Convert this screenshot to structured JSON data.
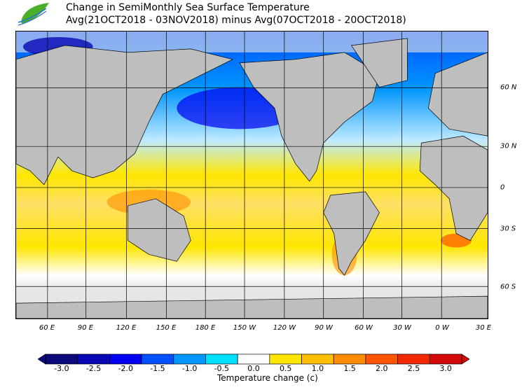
{
  "header": {
    "title_line1": "Change in SemiMonthly Sea Surface Temperature",
    "title_line2": "Avg(21OCT2018 - 03NOV2018) minus Avg(07OCT2018 - 20OCT2018)"
  },
  "map": {
    "lon_labels": [
      "60 E",
      "90 E",
      "120 E",
      "150 E",
      "180 E",
      "150 W",
      "120 W",
      "90 W",
      "60 W",
      "30 W",
      "0 W",
      "30 E"
    ],
    "lat_labels": [
      "60 N",
      "30 N",
      "0",
      "30 S",
      "60 S"
    ],
    "land_color": "#bebebe",
    "missing_color": "#e6e6e6"
  },
  "colorbar": {
    "ticks": [
      "-3.0",
      "-2.5",
      "-2.0",
      "-1.5",
      "-1.0",
      "-0.5",
      "0.0",
      "0.5",
      "1.0",
      "1.5",
      "2.0",
      "2.5",
      "3.0"
    ],
    "colors": [
      "#0a0a7a",
      "#0808b4",
      "#0000f0",
      "#0050ff",
      "#0096ff",
      "#00e0ff",
      "#ffffff",
      "#ffe600",
      "#ffbe00",
      "#ff8c00",
      "#ff5500",
      "#f02800",
      "#d20a0a"
    ],
    "label": "Temperature change  (c)"
  }
}
